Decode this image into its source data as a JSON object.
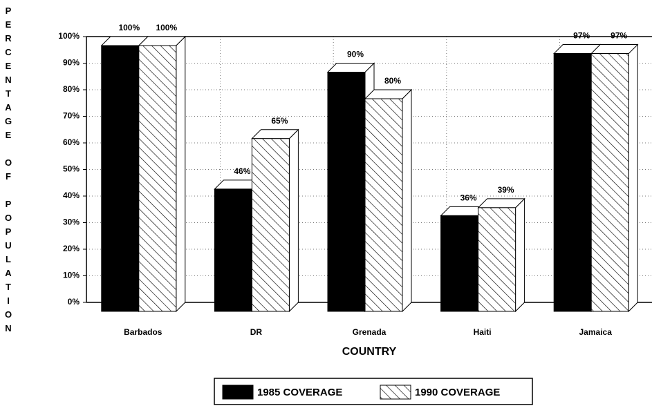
{
  "chart_data": {
    "type": "bar3d",
    "y_label": "PERCENTAGE OF POPULATION",
    "x_label": "COUNTRY",
    "categories": [
      "Barbados",
      "DR",
      "Grenada",
      "Haiti",
      "Jamaica"
    ],
    "series": [
      {
        "name": "1985 COVERAGE",
        "color": "#000000",
        "hatch": false,
        "values": [
          100,
          46,
          90,
          36,
          97
        ],
        "value_labels": [
          "100%",
          "46%",
          "90%",
          "36%",
          "97%"
        ]
      },
      {
        "name": "1990 COVERAGE",
        "color": "#ffffff",
        "hatch": true,
        "values": [
          100,
          65,
          80,
          39,
          97
        ],
        "value_labels": [
          "100%",
          "65%",
          "80%",
          "39%",
          "97%"
        ]
      }
    ],
    "ylim": [
      0,
      100
    ],
    "yticks": [
      {
        "value": 0,
        "label": "0%"
      },
      {
        "value": 10,
        "label": "10%"
      },
      {
        "value": 20,
        "label": "20%"
      },
      {
        "value": 30,
        "label": "30%"
      },
      {
        "value": 40,
        "label": "40%"
      },
      {
        "value": 50,
        "label": "50%"
      },
      {
        "value": 60,
        "label": "60%"
      },
      {
        "value": 70,
        "label": "70%"
      },
      {
        "value": 80,
        "label": "80%"
      },
      {
        "value": 90,
        "label": "90%"
      },
      {
        "value": 100,
        "label": "100%"
      }
    ],
    "grid": true
  }
}
